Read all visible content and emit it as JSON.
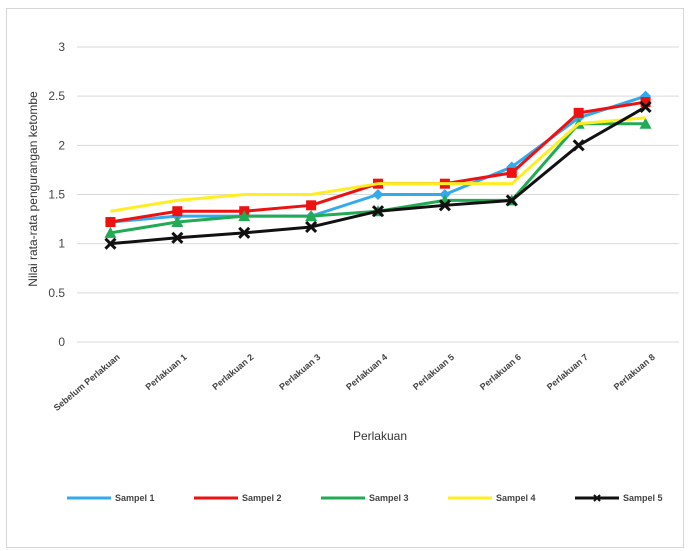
{
  "chart_data": {
    "type": "line",
    "title": "",
    "xlabel": "Perlakuan",
    "ylabel": "Nilai rata-rata pengurangan ketombe",
    "ylim": [
      0,
      3
    ],
    "yticks": [
      "0",
      "0.5",
      "1",
      "1.5",
      "2",
      "2.5",
      "3"
    ],
    "grid": "horizontal",
    "legend_position": "bottom",
    "categories": [
      "Sebelum Perlakuan",
      "Perlakuan 1",
      "Perlakuan 2",
      "Perlakuan 3",
      "Perlakuan 4",
      "Perlakuan 5",
      "Perlakuan 6",
      "Perlakuan 7",
      "Perlakuan 8"
    ],
    "series": [
      {
        "name": "Sampel 1",
        "color": "#33AAEE",
        "marker": "diamond",
        "values": [
          1.22,
          1.28,
          1.28,
          1.28,
          1.5,
          1.5,
          1.78,
          2.28,
          2.5
        ]
      },
      {
        "name": "Sampel 2",
        "color": "#EE1111",
        "marker": "square",
        "values": [
          1.22,
          1.33,
          1.33,
          1.39,
          1.61,
          1.61,
          1.72,
          2.33,
          2.44
        ]
      },
      {
        "name": "Sampel 3",
        "color": "#22AA55",
        "marker": "triangle",
        "values": [
          1.11,
          1.22,
          1.28,
          1.28,
          1.33,
          1.44,
          1.44,
          2.22,
          2.22
        ]
      },
      {
        "name": "Sampel 4",
        "color": "#FFEE22",
        "marker": "none",
        "values": [
          1.33,
          1.44,
          1.5,
          1.5,
          1.61,
          1.61,
          1.61,
          2.22,
          2.28
        ]
      },
      {
        "name": "Sampel 5",
        "color": "#111111",
        "marker": "x",
        "values": [
          1.0,
          1.06,
          1.11,
          1.17,
          1.33,
          1.39,
          1.44,
          2.0,
          2.39
        ]
      }
    ]
  }
}
